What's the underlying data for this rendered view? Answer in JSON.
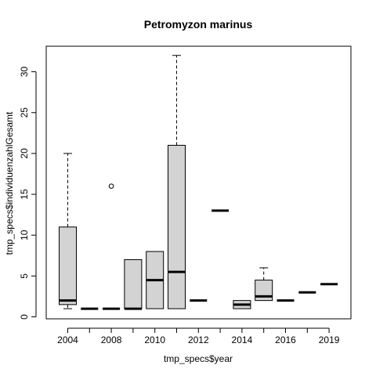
{
  "chart_data": {
    "type": "boxplot",
    "title": "Petromyzon marinus",
    "xlabel": "tmp_specs$year",
    "ylabel": "tmp_specs$individuenzahlGesamt",
    "ylim": [
      0,
      32
    ],
    "yticks": [
      0,
      5,
      10,
      15,
      20,
      25,
      30
    ],
    "categories": [
      "2004",
      "2005",
      "2008",
      "2009",
      "2010",
      "2011",
      "2012",
      "2013",
      "2014",
      "2015",
      "2016",
      "2017",
      "2019"
    ],
    "xtick_labels_shown": [
      "2004",
      "2008",
      "2010",
      "2012",
      "2014",
      "2016",
      "2019"
    ],
    "grid": false,
    "box_fill": "#d3d3d3",
    "boxes": [
      {
        "category": "2004",
        "min": 1,
        "q1": 1.5,
        "median": 2,
        "q3": 11,
        "max": 20,
        "outliers": []
      },
      {
        "category": "2005",
        "min": 1,
        "q1": 1,
        "median": 1,
        "q3": 1,
        "max": 1,
        "outliers": []
      },
      {
        "category": "2008",
        "min": 1,
        "q1": 1,
        "median": 1,
        "q3": 1,
        "max": 1,
        "outliers": [
          16
        ]
      },
      {
        "category": "2009",
        "min": 1,
        "q1": 1,
        "median": 1,
        "q3": 7,
        "max": 7,
        "outliers": []
      },
      {
        "category": "2010",
        "min": 1,
        "q1": 1,
        "median": 4.5,
        "q3": 8,
        "max": 8,
        "outliers": []
      },
      {
        "category": "2011",
        "min": 1,
        "q1": 1,
        "median": 5.5,
        "q3": 21,
        "max": 32,
        "outliers": []
      },
      {
        "category": "2012",
        "min": 2,
        "q1": 2,
        "median": 2,
        "q3": 2,
        "max": 2,
        "outliers": []
      },
      {
        "category": "2013",
        "min": 13,
        "q1": 13,
        "median": 13,
        "q3": 13,
        "max": 13,
        "outliers": []
      },
      {
        "category": "2014",
        "min": 1,
        "q1": 1,
        "median": 1.5,
        "q3": 2,
        "max": 2,
        "outliers": []
      },
      {
        "category": "2015",
        "min": 2,
        "q1": 2,
        "median": 2.5,
        "q3": 4.5,
        "max": 6,
        "outliers": []
      },
      {
        "category": "2016",
        "min": 2,
        "q1": 2,
        "median": 2,
        "q3": 2,
        "max": 2,
        "outliers": []
      },
      {
        "category": "2017",
        "min": 3,
        "q1": 3,
        "median": 3,
        "q3": 3,
        "max": 3,
        "outliers": []
      },
      {
        "category": "2019",
        "min": 4,
        "q1": 4,
        "median": 4,
        "q3": 4,
        "max": 4,
        "outliers": []
      }
    ]
  }
}
